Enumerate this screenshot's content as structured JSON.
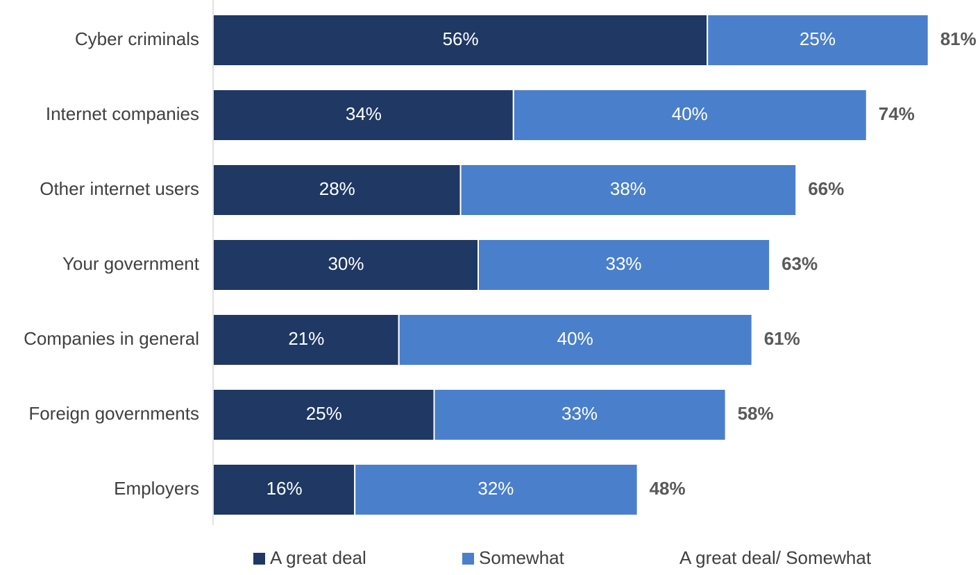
{
  "chart_data": {
    "type": "bar",
    "orientation": "horizontal",
    "stacked": true,
    "categories": [
      "Cyber criminals",
      "Internet companies",
      "Other internet users",
      "Your government",
      "Companies in general",
      "Foreign governments",
      "Employers"
    ],
    "series": [
      {
        "name": "A great deal",
        "values": [
          56,
          34,
          28,
          30,
          21,
          25,
          16
        ],
        "labels": [
          "56%",
          "34%",
          "28%",
          "30%",
          "21%",
          "25%",
          "16%"
        ],
        "color": "#1f3864"
      },
      {
        "name": "Somewhat",
        "values": [
          25,
          40,
          38,
          33,
          40,
          33,
          32
        ],
        "labels": [
          "25%",
          "40%",
          "38%",
          "33%",
          "40%",
          "33%",
          "32%"
        ],
        "color": "#4a7fcc"
      }
    ],
    "totals": {
      "name": "A great deal/ Somewhat",
      "values": [
        81,
        74,
        66,
        63,
        61,
        58,
        48
      ],
      "labels": [
        "81%",
        "74%",
        "66%",
        "63%",
        "61%",
        "58%",
        "48%"
      ],
      "color": "#595959"
    },
    "xlim": [
      0,
      100
    ],
    "grid": false,
    "legend_position": "bottom",
    "title": "",
    "xlabel": "",
    "ylabel": ""
  }
}
